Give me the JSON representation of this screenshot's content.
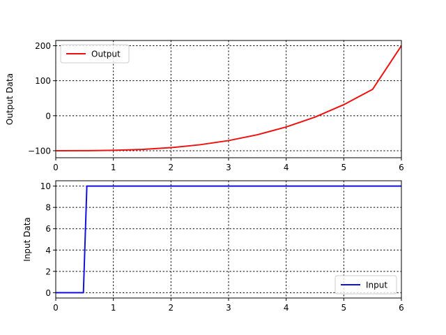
{
  "chart_data": [
    {
      "type": "line",
      "title": "",
      "xlabel": "",
      "ylabel": "Output Data",
      "xlim": [
        0,
        6
      ],
      "ylim": [
        -120,
        215
      ],
      "xticks": [
        0,
        1,
        2,
        3,
        4,
        5,
        6
      ],
      "yticks": [
        -100,
        0,
        100,
        200
      ],
      "ytick_labels": [
        "−100",
        "0",
        "100",
        "200"
      ],
      "grid": true,
      "legend_position": "upper-left",
      "series": [
        {
          "name": "Output",
          "color": "#ee1111",
          "x": [
            0,
            0.5,
            1,
            1.5,
            2,
            2.5,
            3,
            3.5,
            4,
            4.5,
            5,
            5.5,
            6
          ],
          "y": [
            -100,
            -99.9,
            -98.9,
            -96.3,
            -91.2,
            -83,
            -71,
            -54.3,
            -32.2,
            -3.9,
            31.6,
            75.4,
            200
          ]
        }
      ]
    },
    {
      "type": "line",
      "title": "",
      "xlabel": "",
      "ylabel": "Input Data",
      "xlim": [
        0,
        6
      ],
      "ylim": [
        -0.5,
        10.5
      ],
      "xticks": [
        0,
        1,
        2,
        3,
        4,
        5,
        6
      ],
      "yticks": [
        0,
        2,
        4,
        6,
        8,
        10
      ],
      "ytick_labels": [
        "0",
        "2",
        "4",
        "6",
        "8",
        "10"
      ],
      "grid": true,
      "legend_position": "lower-right",
      "series": [
        {
          "name": "Input",
          "color": "#1111dd",
          "x": [
            0,
            0.48,
            0.54,
            6
          ],
          "y": [
            0,
            0,
            10,
            10
          ]
        }
      ]
    }
  ]
}
